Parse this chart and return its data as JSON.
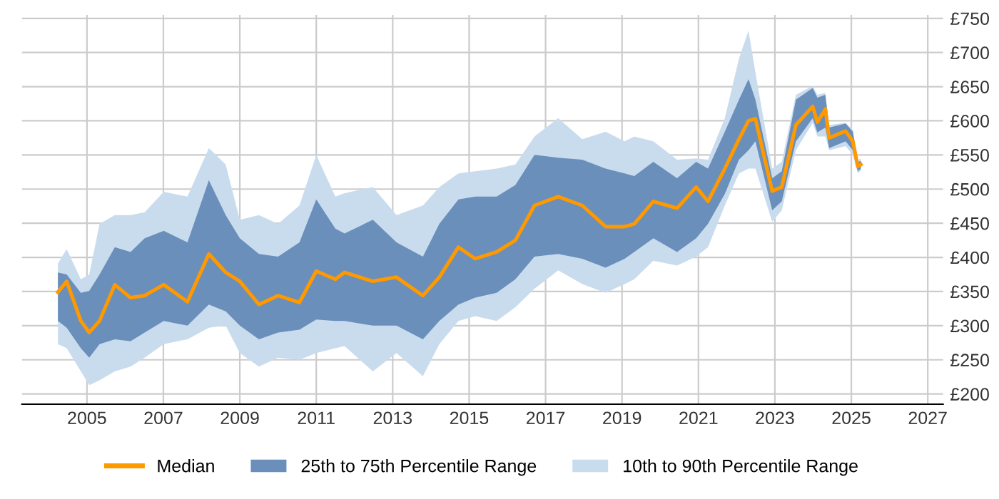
{
  "chart_data": {
    "type": "line",
    "x": [
      2004.24,
      2004.47,
      2004.84,
      2005.06,
      2005.33,
      2005.73,
      2006.14,
      2006.51,
      2007.01,
      2007.63,
      2008.19,
      2008.63,
      2009.0,
      2009.5,
      2010.0,
      2010.56,
      2011.0,
      2011.5,
      2011.74,
      2012.48,
      2013.1,
      2013.79,
      2014.22,
      2014.72,
      2015.16,
      2015.72,
      2016.21,
      2016.71,
      2017.33,
      2017.96,
      2018.57,
      2019.07,
      2019.32,
      2019.82,
      2020.44,
      2020.94,
      2021.25,
      2021.69,
      2022.06,
      2022.31,
      2022.49,
      2022.93,
      2023.18,
      2023.55,
      2023.99,
      2024.11,
      2024.32,
      2024.42,
      2024.85,
      2025.04,
      2025.17,
      2025.25
    ],
    "series": [
      {
        "name": "Median",
        "color": "#ff9900",
        "values": [
          349,
          365,
          307,
          290,
          307,
          360,
          341,
          344,
          360,
          335,
          405,
          378,
          365,
          331,
          344,
          334,
          380,
          368,
          378,
          365,
          371,
          344,
          371,
          415,
          398,
          408,
          425,
          476,
          489,
          476,
          445,
          445,
          449,
          482,
          472,
          503,
          482,
          530,
          573,
          600,
          603,
          497,
          503,
          594,
          621,
          598,
          617,
          575,
          585,
          570,
          533,
          536
        ]
      },
      {
        "name": "25th to 75th Percentile Range",
        "color": "#6b8fbb",
        "values": [
          null,
          null,
          null,
          null,
          null,
          null,
          null,
          null,
          null,
          null,
          null,
          null,
          null,
          null,
          null,
          null,
          null,
          null,
          null,
          null,
          null,
          null,
          null,
          null,
          null,
          null,
          null,
          null,
          null,
          null,
          null,
          null,
          null,
          null,
          null,
          null,
          null,
          null,
          null,
          null,
          null,
          null,
          null,
          null,
          null,
          null,
          null,
          null,
          null,
          null,
          null,
          null
        ],
        "lower": [
          307,
          297,
          267,
          253,
          273,
          280,
          277,
          290,
          307,
          300,
          331,
          321,
          300,
          280,
          290,
          294,
          309,
          307,
          307,
          300,
          300,
          280,
          307,
          331,
          341,
          348,
          368,
          401,
          405,
          398,
          385,
          398,
          408,
          428,
          408,
          428,
          449,
          493,
          543,
          557,
          570,
          469,
          482,
          570,
          604,
          583,
          590,
          560,
          570,
          557,
          526,
          530
        ],
        "upper": [
          378,
          375,
          348,
          351,
          375,
          415,
          408,
          428,
          439,
          422,
          513,
          462,
          428,
          405,
          401,
          422,
          485,
          442,
          435,
          455,
          422,
          401,
          449,
          485,
          489,
          489,
          506,
          550,
          546,
          543,
          530,
          523,
          519,
          540,
          516,
          540,
          530,
          584,
          631,
          661,
          631,
          516,
          526,
          631,
          648,
          634,
          638,
          590,
          596,
          584,
          540,
          541
        ]
      },
      {
        "name": "10th to 90th Percentile Range",
        "color": "#c9dcee",
        "values": [
          null,
          null,
          null,
          null,
          null,
          null,
          null,
          null,
          null,
          null,
          null,
          null,
          null,
          null,
          null,
          null,
          null,
          null,
          null,
          null,
          null,
          null,
          null,
          null,
          null,
          null,
          null,
          null,
          null,
          null,
          null,
          null,
          null,
          null,
          null,
          null,
          null,
          null,
          null,
          null,
          null,
          null,
          null,
          null,
          null,
          null,
          null,
          null,
          null,
          null,
          null,
          null
        ],
        "lower": [
          273,
          267,
          233,
          213,
          220,
          233,
          240,
          253,
          273,
          280,
          297,
          300,
          260,
          240,
          253,
          250,
          260,
          267,
          270,
          233,
          260,
          226,
          273,
          307,
          314,
          307,
          327,
          354,
          381,
          361,
          348,
          361,
          368,
          395,
          388,
          401,
          415,
          476,
          523,
          530,
          530,
          452,
          469,
          557,
          597,
          577,
          577,
          557,
          563,
          550,
          523,
          527
        ],
        "upper": [
          391,
          412,
          368,
          375,
          449,
          462,
          462,
          466,
          496,
          489,
          560,
          536,
          455,
          462,
          449,
          476,
          550,
          489,
          494,
          503,
          462,
          476,
          503,
          523,
          526,
          530,
          536,
          577,
          604,
          573,
          584,
          570,
          577,
          570,
          543,
          545,
          543,
          604,
          691,
          732,
          671,
          530,
          540,
          638,
          651,
          638,
          641,
          594,
          597,
          587,
          543,
          544
        ]
      }
    ],
    "xlim": [
      2003.3,
      2027.4
    ],
    "xticks": [
      2005,
      2007,
      2009,
      2011,
      2013,
      2015,
      2017,
      2019,
      2021,
      2023,
      2025,
      2027
    ],
    "ylim": [
      185,
      755
    ],
    "yticks": [
      {
        "value": 200,
        "label": "£200"
      },
      {
        "value": 250,
        "label": "£250"
      },
      {
        "value": 300,
        "label": "£300"
      },
      {
        "value": 350,
        "label": "£350"
      },
      {
        "value": 400,
        "label": "£400"
      },
      {
        "value": 450,
        "label": "£450"
      },
      {
        "value": 500,
        "label": "£500"
      },
      {
        "value": 550,
        "label": "£550"
      },
      {
        "value": 600,
        "label": "£600"
      },
      {
        "value": 650,
        "label": "£650"
      },
      {
        "value": 700,
        "label": "£700"
      },
      {
        "value": 750,
        "label": "£750"
      }
    ],
    "grid": true,
    "legend": "bottom",
    "marker": "none",
    "line_style": "solid"
  }
}
